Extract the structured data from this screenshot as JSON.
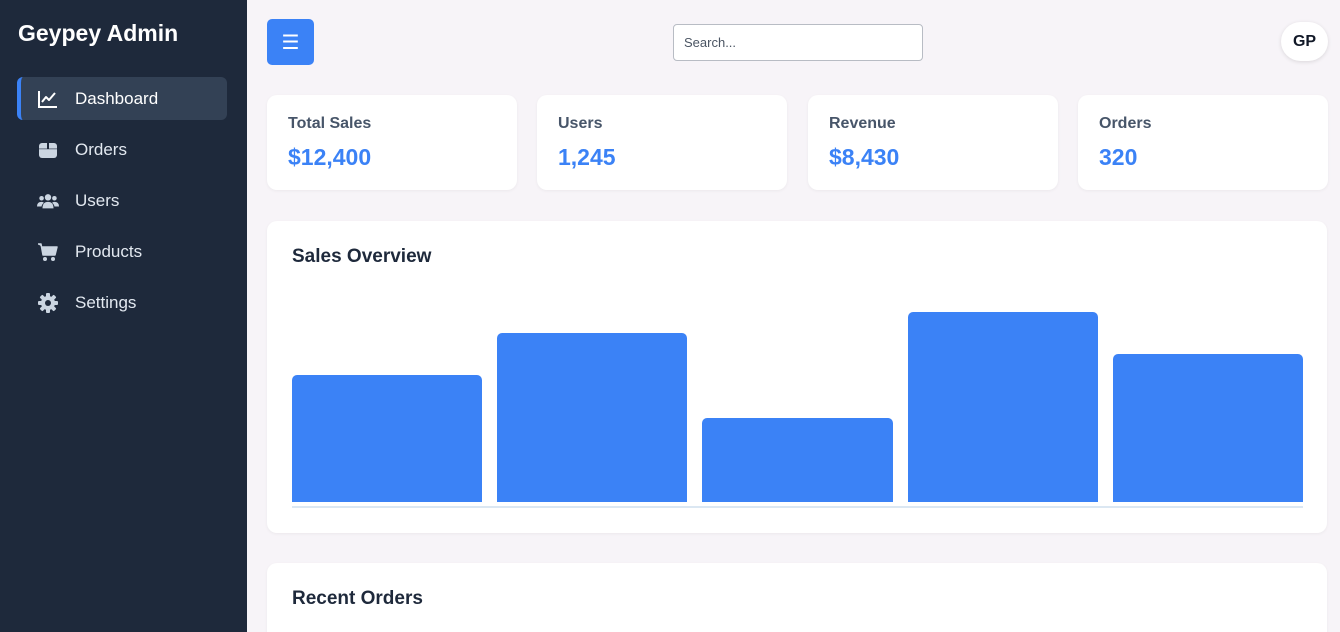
{
  "sidebar": {
    "brand": "Geypey Admin",
    "items": [
      {
        "label": "Dashboard",
        "icon": "chart-line-icon",
        "active": true
      },
      {
        "label": "Orders",
        "icon": "box-icon"
      },
      {
        "label": "Users",
        "icon": "users-icon"
      },
      {
        "label": "Products",
        "icon": "cart-icon"
      },
      {
        "label": "Settings",
        "icon": "gear-icon"
      }
    ]
  },
  "header": {
    "menu_icon": "☰",
    "search_placeholder": "Search...",
    "avatar": "GP"
  },
  "stats": [
    {
      "label": "Total Sales",
      "value": "$12,400"
    },
    {
      "label": "Users",
      "value": "1,245"
    },
    {
      "label": "Revenue",
      "value": "$8,430"
    },
    {
      "label": "Orders",
      "value": "320"
    }
  ],
  "sales_overview": {
    "title": "Sales Overview"
  },
  "chart_data": {
    "type": "bar",
    "title": "Sales Overview",
    "categories": [
      "",
      "",
      "",
      "",
      ""
    ],
    "values": [
      60,
      80,
      40,
      90,
      70
    ],
    "ylim": [
      0,
      100
    ],
    "grid": false,
    "color": "#3b82f6"
  },
  "recent_orders": {
    "title": "Recent Orders"
  },
  "colors": {
    "sidebar_bg": "#1e293b",
    "accent": "#3b82f6",
    "page_bg": "#f7f4f8"
  }
}
